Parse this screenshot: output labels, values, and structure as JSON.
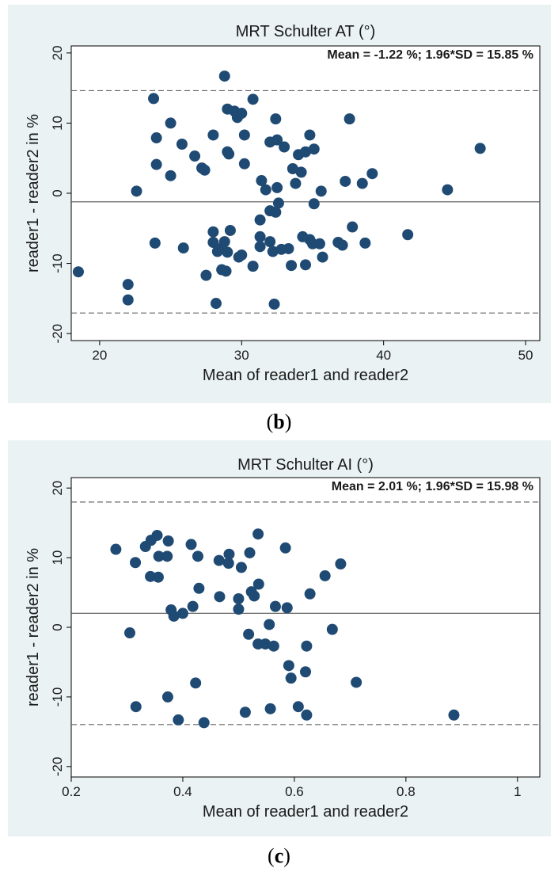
{
  "panels": [
    {
      "caption_open": "(",
      "caption_letter": "b",
      "caption_close": ")",
      "chart_data": {
        "type": "scatter",
        "title": "MRT Schulter AT (°)",
        "annotation": "Mean = -1.22 %; 1.96*SD = 15.85 %",
        "xlabel": "Mean of reader1 and reader2",
        "ylabel": "reader1 - reader2 in %",
        "xlim": [
          18,
          51
        ],
        "ylim": [
          -21,
          21
        ],
        "xticks": [
          20,
          30,
          40,
          50
        ],
        "xtick_labels": [
          "20",
          "30",
          "40",
          "50"
        ],
        "yticks": [
          -20,
          -10,
          0,
          10,
          20
        ],
        "ytick_labels": [
          "-20",
          "-10",
          "0",
          "10",
          "20"
        ],
        "grid": false,
        "mean_line": -1.22,
        "limit_lines": [
          14.63,
          -17.07
        ],
        "point_color": "#1f4a73",
        "points": [
          [
            18.5,
            -11.2
          ],
          [
            22.0,
            -13.0
          ],
          [
            22.0,
            -15.2
          ],
          [
            22.6,
            0.3
          ],
          [
            23.8,
            13.5
          ],
          [
            23.9,
            -7.1
          ],
          [
            24.0,
            7.9
          ],
          [
            24.0,
            4.1
          ],
          [
            25.0,
            10.0
          ],
          [
            25.0,
            2.5
          ],
          [
            25.8,
            7.0
          ],
          [
            25.9,
            -7.8
          ],
          [
            26.7,
            5.3
          ],
          [
            27.2,
            3.6
          ],
          [
            27.4,
            3.3
          ],
          [
            27.5,
            -11.7
          ],
          [
            28.0,
            -5.5
          ],
          [
            28.0,
            -7.0
          ],
          [
            28.0,
            8.3
          ],
          [
            28.2,
            -15.7
          ],
          [
            28.3,
            -8.3
          ],
          [
            28.5,
            -7.9
          ],
          [
            28.6,
            -10.9
          ],
          [
            28.8,
            16.7
          ],
          [
            28.8,
            -6.9
          ],
          [
            28.9,
            -11.1
          ],
          [
            29.0,
            5.9
          ],
          [
            29.0,
            12.0
          ],
          [
            29.0,
            -8.4
          ],
          [
            29.1,
            5.6
          ],
          [
            29.2,
            -5.3
          ],
          [
            29.5,
            11.7
          ],
          [
            29.7,
            10.8
          ],
          [
            29.8,
            -9.1
          ],
          [
            30.0,
            11.4
          ],
          [
            30.0,
            -8.8
          ],
          [
            30.2,
            8.3
          ],
          [
            30.2,
            4.2
          ],
          [
            30.8,
            13.4
          ],
          [
            30.8,
            -10.4
          ],
          [
            31.3,
            -3.8
          ],
          [
            31.3,
            -6.2
          ],
          [
            31.3,
            -7.6
          ],
          [
            31.4,
            1.8
          ],
          [
            31.7,
            0.5
          ],
          [
            32.0,
            -6.9
          ],
          [
            32.0,
            -2.5
          ],
          [
            32.0,
            7.3
          ],
          [
            32.2,
            -8.3
          ],
          [
            32.3,
            -15.8
          ],
          [
            32.4,
            -2.7
          ],
          [
            32.4,
            10.6
          ],
          [
            32.5,
            0.8
          ],
          [
            32.5,
            7.6
          ],
          [
            32.6,
            -1.4
          ],
          [
            32.8,
            -8.0
          ],
          [
            33.0,
            6.6
          ],
          [
            33.3,
            -7.9
          ],
          [
            33.5,
            -10.3
          ],
          [
            33.6,
            3.5
          ],
          [
            33.8,
            1.4
          ],
          [
            34.0,
            5.5
          ],
          [
            34.2,
            3.0
          ],
          [
            34.3,
            -6.2
          ],
          [
            34.5,
            -10.2
          ],
          [
            34.5,
            5.9
          ],
          [
            34.8,
            8.3
          ],
          [
            34.8,
            -6.6
          ],
          [
            35.0,
            -7.2
          ],
          [
            35.1,
            -1.5
          ],
          [
            35.1,
            6.3
          ],
          [
            35.5,
            -7.2
          ],
          [
            35.6,
            0.3
          ],
          [
            35.7,
            -9.1
          ],
          [
            36.8,
            -7.0
          ],
          [
            37.1,
            -7.4
          ],
          [
            37.3,
            1.7
          ],
          [
            37.6,
            10.6
          ],
          [
            37.8,
            -4.8
          ],
          [
            38.5,
            1.4
          ],
          [
            38.7,
            -7.1
          ],
          [
            39.2,
            2.8
          ],
          [
            41.7,
            -5.9
          ],
          [
            44.5,
            0.5
          ],
          [
            46.8,
            6.4
          ]
        ]
      }
    },
    {
      "caption_open": "(",
      "caption_letter": "c",
      "caption_close": ")",
      "chart_data": {
        "type": "scatter",
        "title": "MRT Schulter AI (°)",
        "annotation": "Mean = 2.01 %; 1.96*SD = 15.98 %",
        "xlabel": "Mean of reader1 and reader2",
        "ylabel": "reader1 - reader2 in %",
        "xlim": [
          0.2,
          1.04
        ],
        "ylim": [
          -21.5,
          21.5
        ],
        "xticks": [
          0.2,
          0.4,
          0.6,
          0.8,
          1.0
        ],
        "xtick_labels": [
          "0.2",
          "0.4",
          "0.6",
          "0.8",
          "1"
        ],
        "yticks": [
          -20,
          -10,
          0,
          10,
          20
        ],
        "ytick_labels": [
          "-20",
          "-10",
          "0",
          "10",
          "20"
        ],
        "grid": false,
        "mean_line": 2.01,
        "limit_lines": [
          17.99,
          -13.97
        ],
        "point_color": "#1f4a73",
        "points": [
          [
            0.28,
            11.2
          ],
          [
            0.305,
            -0.8
          ],
          [
            0.315,
            9.3
          ],
          [
            0.316,
            -11.4
          ],
          [
            0.333,
            11.6
          ],
          [
            0.342,
            7.3
          ],
          [
            0.343,
            12.5
          ],
          [
            0.354,
            13.2
          ],
          [
            0.356,
            7.2
          ],
          [
            0.357,
            10.2
          ],
          [
            0.372,
            10.2
          ],
          [
            0.373,
            -10.0
          ],
          [
            0.374,
            12.4
          ],
          [
            0.379,
            2.5
          ],
          [
            0.384,
            1.6
          ],
          [
            0.392,
            -13.3
          ],
          [
            0.4,
            2.0
          ],
          [
            0.415,
            11.9
          ],
          [
            0.418,
            3.0
          ],
          [
            0.423,
            -8.0
          ],
          [
            0.427,
            10.2
          ],
          [
            0.429,
            5.6
          ],
          [
            0.438,
            -13.7
          ],
          [
            0.465,
            9.6
          ],
          [
            0.466,
            4.4
          ],
          [
            0.482,
            9.2
          ],
          [
            0.483,
            10.5
          ],
          [
            0.5,
            2.6
          ],
          [
            0.5,
            4.1
          ],
          [
            0.505,
            8.6
          ],
          [
            0.512,
            -12.2
          ],
          [
            0.518,
            -1.0
          ],
          [
            0.52,
            10.7
          ],
          [
            0.523,
            5.1
          ],
          [
            0.528,
            4.5
          ],
          [
            0.535,
            13.4
          ],
          [
            0.535,
            -2.4
          ],
          [
            0.536,
            6.2
          ],
          [
            0.548,
            -2.4
          ],
          [
            0.555,
            0.4
          ],
          [
            0.557,
            -11.7
          ],
          [
            0.563,
            -2.7
          ],
          [
            0.566,
            3.0
          ],
          [
            0.584,
            11.4
          ],
          [
            0.587,
            2.8
          ],
          [
            0.59,
            -5.5
          ],
          [
            0.594,
            -7.3
          ],
          [
            0.607,
            -11.4
          ],
          [
            0.62,
            -6.4
          ],
          [
            0.622,
            -2.7
          ],
          [
            0.622,
            -12.6
          ],
          [
            0.628,
            4.8
          ],
          [
            0.655,
            7.4
          ],
          [
            0.668,
            -0.3
          ],
          [
            0.683,
            9.1
          ],
          [
            0.711,
            -7.9
          ],
          [
            0.886,
            -12.6
          ]
        ]
      }
    }
  ]
}
